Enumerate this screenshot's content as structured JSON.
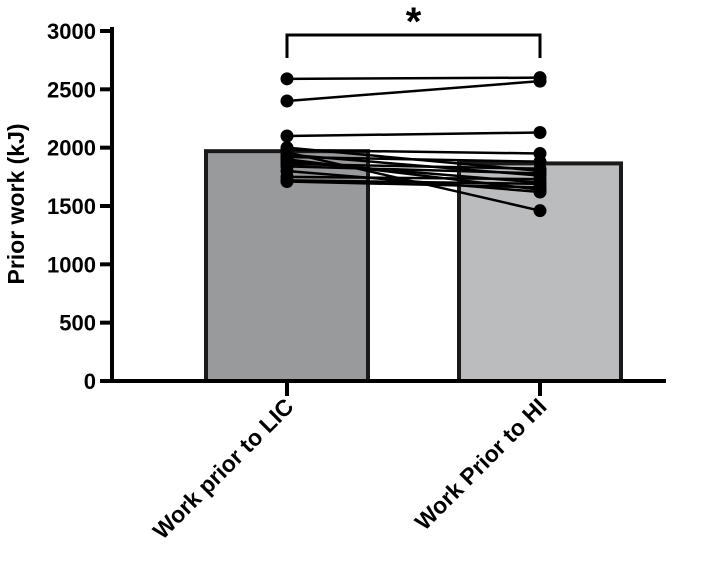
{
  "chart_data": {
    "type": "bar",
    "ylabel": "Prior work (kJ)",
    "ylim": [
      0,
      3000
    ],
    "yticks": [
      0,
      500,
      1000,
      1500,
      2000,
      2500,
      3000
    ],
    "categories": [
      "Work prior to LIC",
      "Work Prior to HI"
    ],
    "values": [
      1970,
      1865
    ],
    "bar_colors": [
      "#999a9c",
      "#bbbcbe"
    ],
    "paired_points": [
      [
        2590,
        2600
      ],
      [
        2400,
        2570
      ],
      [
        2100,
        2130
      ],
      [
        2000,
        1800
      ],
      [
        1980,
        1950
      ],
      [
        1960,
        1460
      ],
      [
        1940,
        1760
      ],
      [
        1920,
        1880
      ],
      [
        1900,
        1640
      ],
      [
        1880,
        1700
      ],
      [
        1860,
        1820
      ],
      [
        1840,
        1780
      ],
      [
        1800,
        1620
      ],
      [
        1750,
        1730
      ],
      [
        1720,
        1690
      ],
      [
        1710,
        1660
      ]
    ],
    "significance": {
      "marker": "*",
      "between": [
        0,
        1
      ]
    },
    "grid": false,
    "legend": "none"
  }
}
